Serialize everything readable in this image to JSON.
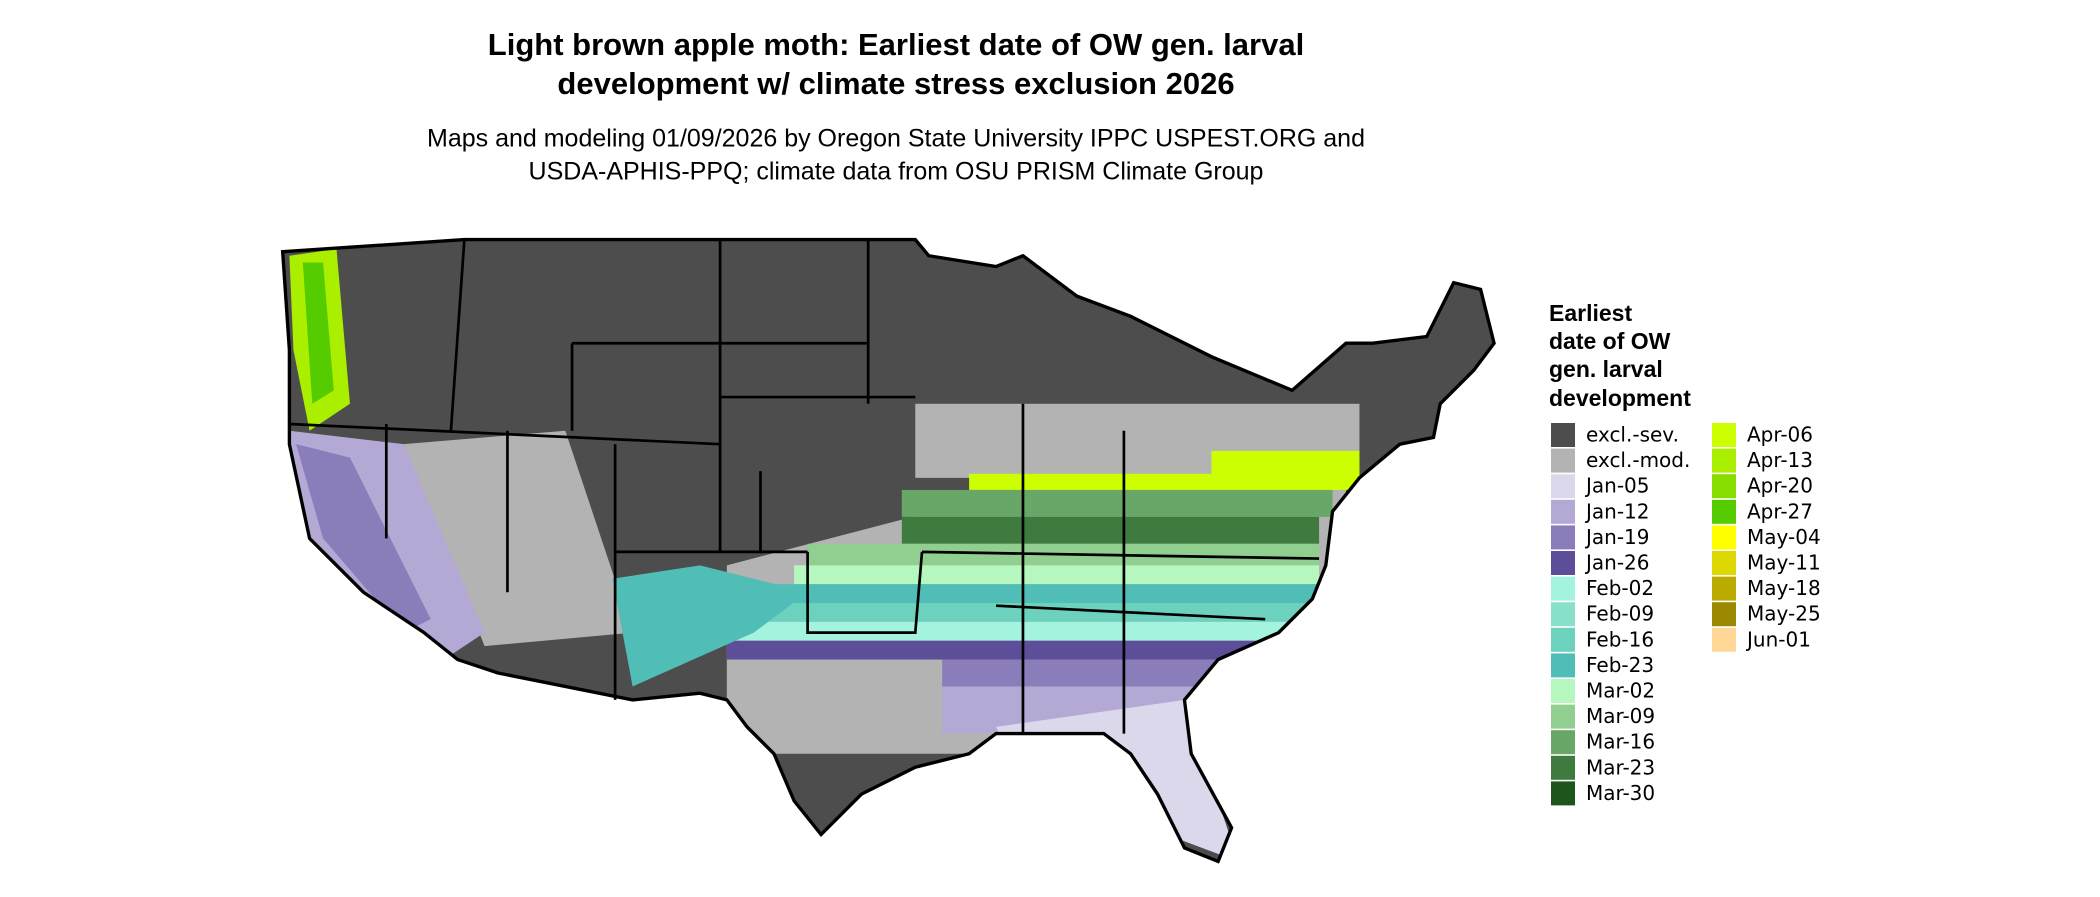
{
  "header": {
    "title": [
      "Light brown apple moth: Earliest date of OW gen. larval",
      "development w/ climate stress exclusion 2026"
    ],
    "subtitle": [
      "Maps and modeling 01/09/2026 by Oregon State University IPPC USPEST.ORG and",
      "USDA-APHIS-PPQ; climate data from OSU PRISM Climate Group"
    ]
  },
  "legend": {
    "title": [
      "Earliest",
      "date of OW",
      "gen. larval",
      "development"
    ],
    "items": [
      {
        "label": "excl.-sev.",
        "color": "#4d4d4d"
      },
      {
        "label": "excl.-mod.",
        "color": "#b3b3b3"
      },
      {
        "label": "Jan-05",
        "color": "#dcd8ec"
      },
      {
        "label": "Jan-12",
        "color": "#b3a9d4"
      },
      {
        "label": "Jan-19",
        "color": "#8b7cba"
      },
      {
        "label": "Jan-26",
        "color": "#5e4d98"
      },
      {
        "label": "Feb-02",
        "color": "#a4f3df"
      },
      {
        "label": "Feb-09",
        "color": "#88e0cb"
      },
      {
        "label": "Feb-16",
        "color": "#6cd1bd"
      },
      {
        "label": "Feb-23",
        "color": "#50bdb6"
      },
      {
        "label": "Mar-02",
        "color": "#b5f7be"
      },
      {
        "label": "Mar-09",
        "color": "#90cf90"
      },
      {
        "label": "Mar-16",
        "color": "#69a769"
      },
      {
        "label": "Mar-23",
        "color": "#3f7a3f"
      },
      {
        "label": "Mar-30",
        "color": "#1d561d"
      },
      {
        "label": "Apr-06",
        "color": "#ccff00"
      },
      {
        "label": "Apr-13",
        "color": "#aaee00"
      },
      {
        "label": "Apr-20",
        "color": "#88dd00"
      },
      {
        "label": "Apr-27",
        "color": "#55cc00"
      },
      {
        "label": "May-04",
        "color": "#ffff00"
      },
      {
        "label": "May-11",
        "color": "#ddd800"
      },
      {
        "label": "May-18",
        "color": "#bbaa00"
      },
      {
        "label": "May-25",
        "color": "#998800"
      },
      {
        "label": "Jun-01",
        "color": "#ffd898"
      }
    ]
  }
}
